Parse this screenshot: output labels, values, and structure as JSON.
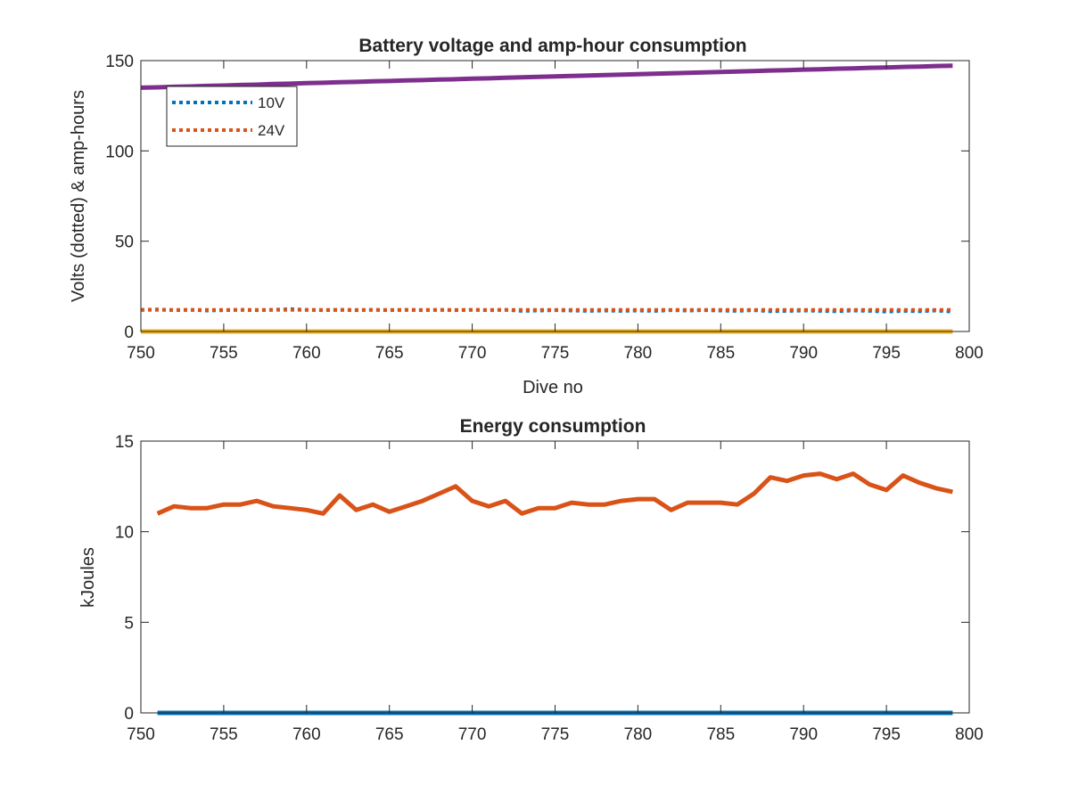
{
  "chart_data": [
    {
      "type": "line",
      "title": "Battery voltage and amp-hour consumption",
      "xlabel": "Dive no",
      "ylabel": "Volts (dotted) & amp-hours",
      "xlim": [
        750,
        800
      ],
      "ylim": [
        0,
        150
      ],
      "xticks": [
        750,
        755,
        760,
        765,
        770,
        775,
        780,
        785,
        790,
        795,
        800
      ],
      "yticks": [
        0,
        50,
        100,
        150
      ],
      "grid": false,
      "legend_position": "top-left",
      "x": [
        750,
        751,
        752,
        753,
        754,
        755,
        756,
        757,
        758,
        759,
        760,
        761,
        762,
        763,
        764,
        765,
        766,
        767,
        768,
        769,
        770,
        771,
        772,
        773,
        774,
        775,
        776,
        777,
        778,
        779,
        780,
        781,
        782,
        783,
        784,
        785,
        786,
        787,
        788,
        789,
        790,
        791,
        792,
        793,
        794,
        795,
        796,
        797,
        798,
        799
      ],
      "series": [
        {
          "name": "10V",
          "color": "#0072BD",
          "style": "dotted",
          "in_legend": true,
          "values": [
            12.0,
            12.2,
            11.8,
            12.0,
            11.6,
            11.8,
            12.0,
            11.8,
            12.0,
            12.4,
            12.0,
            11.8,
            12.0,
            11.8,
            12.0,
            11.8,
            12.0,
            11.8,
            12.0,
            11.8,
            12.0,
            11.8,
            12.0,
            11.4,
            11.6,
            11.8,
            11.6,
            11.4,
            11.6,
            11.4,
            11.6,
            11.4,
            11.8,
            11.6,
            11.8,
            11.6,
            11.4,
            11.8,
            11.2,
            11.4,
            11.6,
            11.4,
            11.2,
            11.6,
            11.4,
            11.0,
            11.4,
            11.2,
            11.6,
            11.0
          ]
        },
        {
          "name": "24V",
          "color": "#D95319",
          "style": "dotted",
          "in_legend": true,
          "values": [
            12.0,
            12.0,
            12.0,
            12.0,
            12.0,
            12.0,
            12.0,
            12.0,
            12.0,
            12.0,
            12.0,
            12.0,
            12.0,
            12.0,
            12.0,
            12.0,
            12.0,
            12.0,
            12.0,
            12.0,
            12.0,
            12.0,
            12.0,
            12.0,
            12.0,
            12.0,
            12.0,
            12.0,
            12.0,
            12.0,
            12.0,
            12.0,
            12.0,
            12.0,
            12.0,
            12.0,
            12.0,
            12.0,
            12.0,
            12.0,
            12.0,
            12.0,
            12.0,
            12.0,
            12.0,
            12.0,
            12.0,
            12.0,
            12.0,
            12.0
          ]
        },
        {
          "color": "#EDB120",
          "style": "solid",
          "in_legend": false,
          "values": [
            0,
            0,
            0,
            0,
            0,
            0,
            0,
            0,
            0,
            0,
            0,
            0,
            0,
            0,
            0,
            0,
            0,
            0,
            0,
            0,
            0,
            0,
            0,
            0,
            0,
            0,
            0,
            0,
            0,
            0,
            0,
            0,
            0,
            0,
            0,
            0,
            0,
            0,
            0,
            0,
            0,
            0,
            0,
            0,
            0,
            0,
            0,
            0,
            0,
            0
          ]
        },
        {
          "color": "#7E2F8E",
          "style": "solid",
          "in_legend": false,
          "values": [
            135.0,
            135.2,
            135.5,
            135.7,
            136.0,
            136.2,
            136.5,
            136.7,
            137.0,
            137.2,
            137.5,
            137.7,
            138.0,
            138.2,
            138.5,
            138.7,
            139.0,
            139.2,
            139.5,
            139.7,
            140.0,
            140.2,
            140.5,
            140.7,
            141.0,
            141.2,
            141.5,
            141.7,
            142.0,
            142.2,
            142.5,
            142.7,
            143.0,
            143.2,
            143.5,
            143.7,
            144.0,
            144.2,
            144.5,
            144.7,
            145.0,
            145.2,
            145.5,
            145.7,
            146.0,
            146.2,
            146.5,
            146.7,
            147.0,
            147.2
          ]
        }
      ]
    },
    {
      "type": "line",
      "title": "Energy consumption",
      "xlabel": "",
      "ylabel": "kJoules",
      "xlim": [
        750,
        800
      ],
      "ylim": [
        0,
        15
      ],
      "xticks": [
        750,
        755,
        760,
        765,
        770,
        775,
        780,
        785,
        790,
        795,
        800
      ],
      "yticks": [
        0,
        5,
        10,
        15
      ],
      "grid": false,
      "x": [
        751,
        752,
        753,
        754,
        755,
        756,
        757,
        758,
        759,
        760,
        761,
        762,
        763,
        764,
        765,
        766,
        767,
        768,
        769,
        770,
        771,
        772,
        773,
        774,
        775,
        776,
        777,
        778,
        779,
        780,
        781,
        782,
        783,
        784,
        785,
        786,
        787,
        788,
        789,
        790,
        791,
        792,
        793,
        794,
        795,
        796,
        797,
        798,
        799
      ],
      "series": [
        {
          "color": "#0072BD",
          "style": "solid",
          "values": [
            0,
            0,
            0,
            0,
            0,
            0,
            0,
            0,
            0,
            0,
            0,
            0,
            0,
            0,
            0,
            0,
            0,
            0,
            0,
            0,
            0,
            0,
            0,
            0,
            0,
            0,
            0,
            0,
            0,
            0,
            0,
            0,
            0,
            0,
            0,
            0,
            0,
            0,
            0,
            0,
            0,
            0,
            0,
            0,
            0,
            0,
            0,
            0,
            0
          ]
        },
        {
          "color": "#D95319",
          "style": "solid",
          "values": [
            11.0,
            11.4,
            11.3,
            11.3,
            11.5,
            11.5,
            11.7,
            11.4,
            11.3,
            11.2,
            11.0,
            12.0,
            11.2,
            11.5,
            11.1,
            11.4,
            11.7,
            12.1,
            12.5,
            11.7,
            11.4,
            11.7,
            11.0,
            11.3,
            11.3,
            11.6,
            11.5,
            11.5,
            11.7,
            11.8,
            11.8,
            11.2,
            11.6,
            11.6,
            11.6,
            11.5,
            12.1,
            13.0,
            12.8,
            13.1,
            13.2,
            12.9,
            13.2,
            12.6,
            12.3,
            13.1,
            12.7,
            12.4,
            12.2
          ]
        }
      ]
    }
  ]
}
